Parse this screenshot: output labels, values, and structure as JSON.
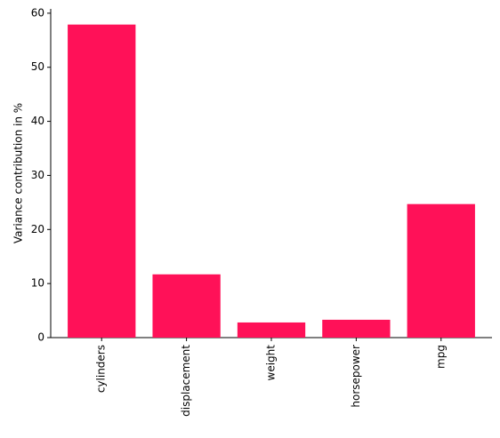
{
  "chart_data": {
    "type": "bar",
    "y_label": "Variance contribution in %",
    "categories": [
      "cylinders",
      "displacement",
      "weight",
      "horsepower",
      "mpg"
    ],
    "values": [
      57.9,
      11.7,
      2.8,
      3.3,
      24.7
    ],
    "color": "#ff1158",
    "ylim": [
      0,
      60.8
    ],
    "yticks": [
      0,
      10,
      20,
      30,
      40,
      50,
      60
    ]
  }
}
